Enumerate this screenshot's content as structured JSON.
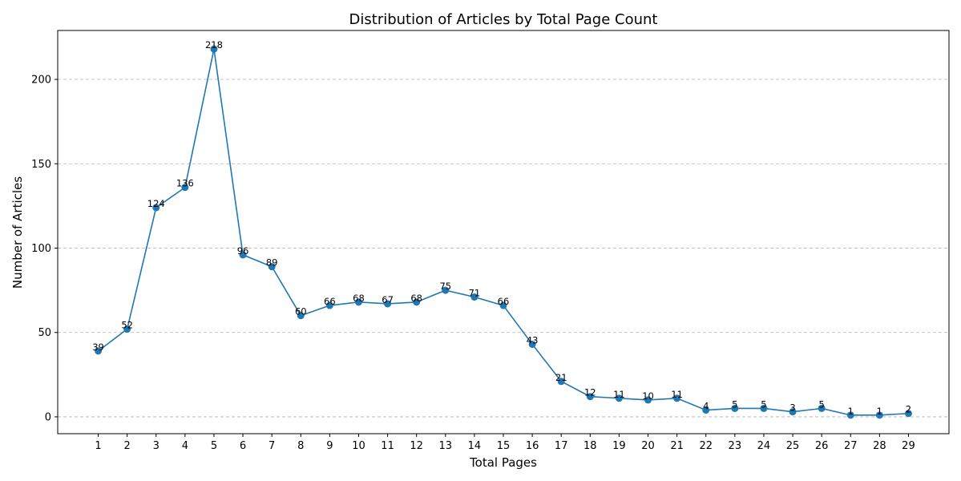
{
  "chart_data": {
    "type": "line",
    "title": "Distribution of Articles by Total Page Count",
    "xlabel": "Total Pages",
    "ylabel": "Number of Articles",
    "x": [
      1,
      2,
      3,
      4,
      5,
      6,
      7,
      8,
      9,
      10,
      11,
      12,
      13,
      14,
      15,
      16,
      17,
      18,
      19,
      20,
      21,
      22,
      23,
      24,
      25,
      26,
      27,
      28,
      29
    ],
    "series": [
      {
        "values": [
          39,
          52,
          124,
          136,
          218,
          96,
          89,
          60,
          66,
          68,
          67,
          68,
          75,
          71,
          66,
          43,
          21,
          12,
          11,
          10,
          11,
          4,
          5,
          5,
          3,
          5,
          1,
          1,
          2
        ],
        "color": "#1f77b4"
      }
    ],
    "yticks": [
      0,
      50,
      100,
      150,
      200
    ],
    "ylim": [
      -10,
      229
    ],
    "xlim": [
      -0.4,
      30.4
    ],
    "grid": "y-dashed",
    "data_labels": true
  }
}
